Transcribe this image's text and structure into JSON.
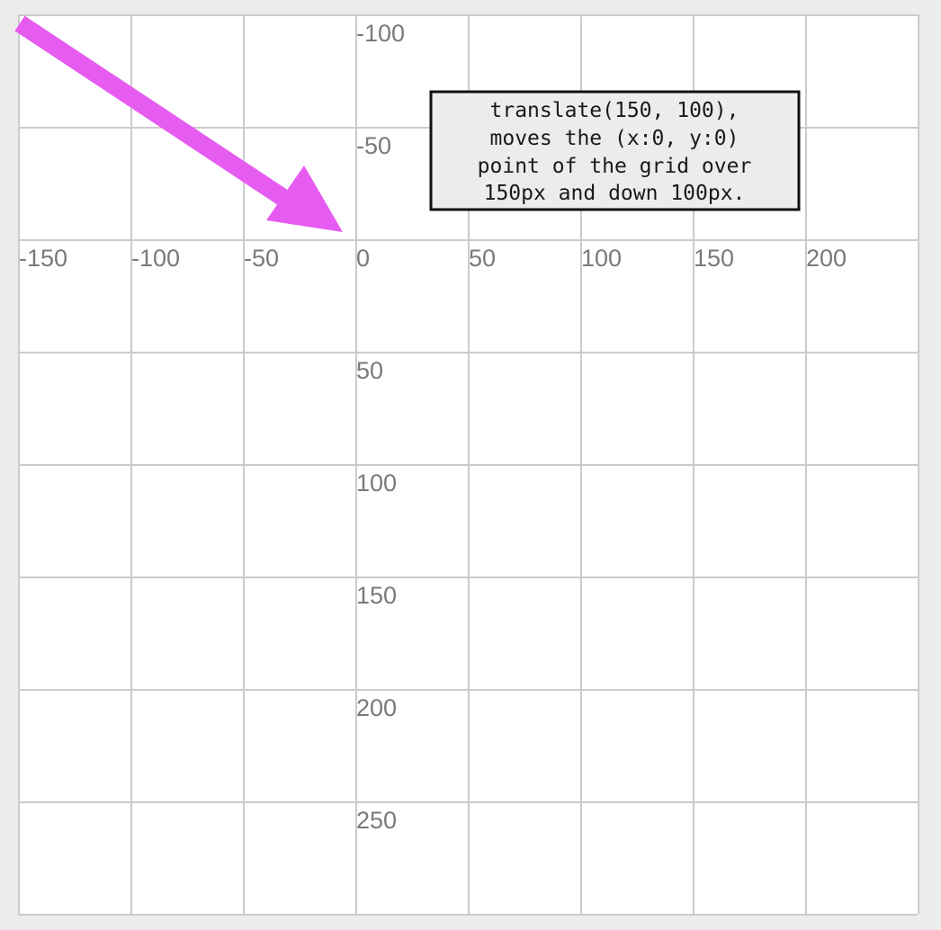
{
  "grid": {
    "x_ticks": [
      "-150",
      "-100",
      "-50",
      "0",
      "50",
      "100",
      "150",
      "200"
    ],
    "y_ticks": [
      "-100",
      "-50",
      "50",
      "100",
      "150",
      "200",
      "250"
    ],
    "colors": {
      "background": "#ececec",
      "canvas": "#ffffff",
      "gridline": "#cbcbcb",
      "tick_label": "#7a7a7a"
    }
  },
  "arrow": {
    "icon": "arrow-down-right-icon",
    "color": "#e65cf0"
  },
  "callout": {
    "lines": [
      "translate(150, 100),",
      "moves the (x:0, y:0)",
      "point of the grid over",
      "150px and down 100px."
    ]
  }
}
